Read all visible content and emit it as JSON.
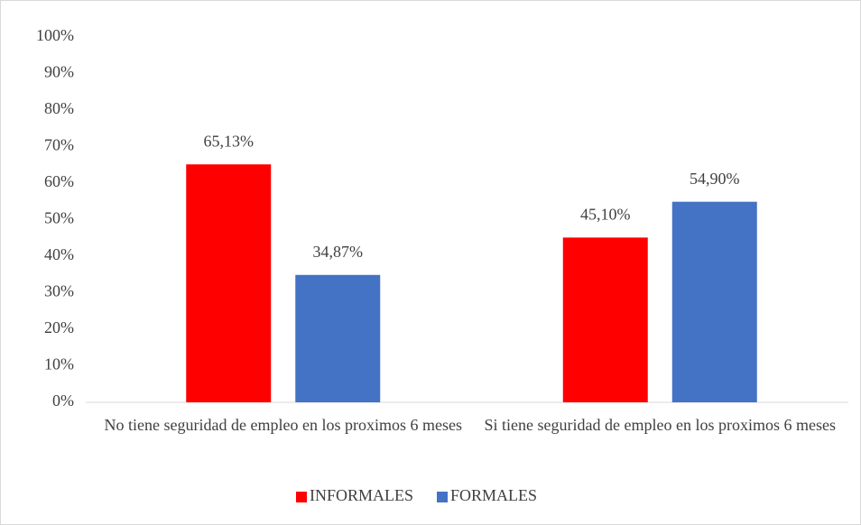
{
  "chart_data": {
    "type": "bar",
    "categories": [
      "No tiene seguridad de empleo en los proximos 6 meses",
      "Si tiene seguridad de empleo en los proximos 6 meses"
    ],
    "series": [
      {
        "name": "INFORMALES",
        "color": "#ff0000",
        "values": [
          65.13,
          45.1
        ],
        "value_labels": [
          "65,13%",
          "45,10%"
        ]
      },
      {
        "name": "FORMALES",
        "color": "#4472c4",
        "values": [
          34.87,
          54.9
        ],
        "value_labels": [
          "34,87%",
          "54,90%"
        ]
      }
    ],
    "ylim": [
      0,
      100
    ],
    "yticks": [
      {
        "value": 0,
        "label": "0%"
      },
      {
        "value": 10,
        "label": "10%"
      },
      {
        "value": 20,
        "label": "20%"
      },
      {
        "value": 30,
        "label": "30%"
      },
      {
        "value": 40,
        "label": "40%"
      },
      {
        "value": 50,
        "label": "50%"
      },
      {
        "value": 60,
        "label": "60%"
      },
      {
        "value": 70,
        "label": "70%"
      },
      {
        "value": 80,
        "label": "80%"
      },
      {
        "value": 90,
        "label": "90%"
      },
      {
        "value": 100,
        "label": "100%"
      }
    ],
    "grid": false,
    "legend": "bottom"
  }
}
